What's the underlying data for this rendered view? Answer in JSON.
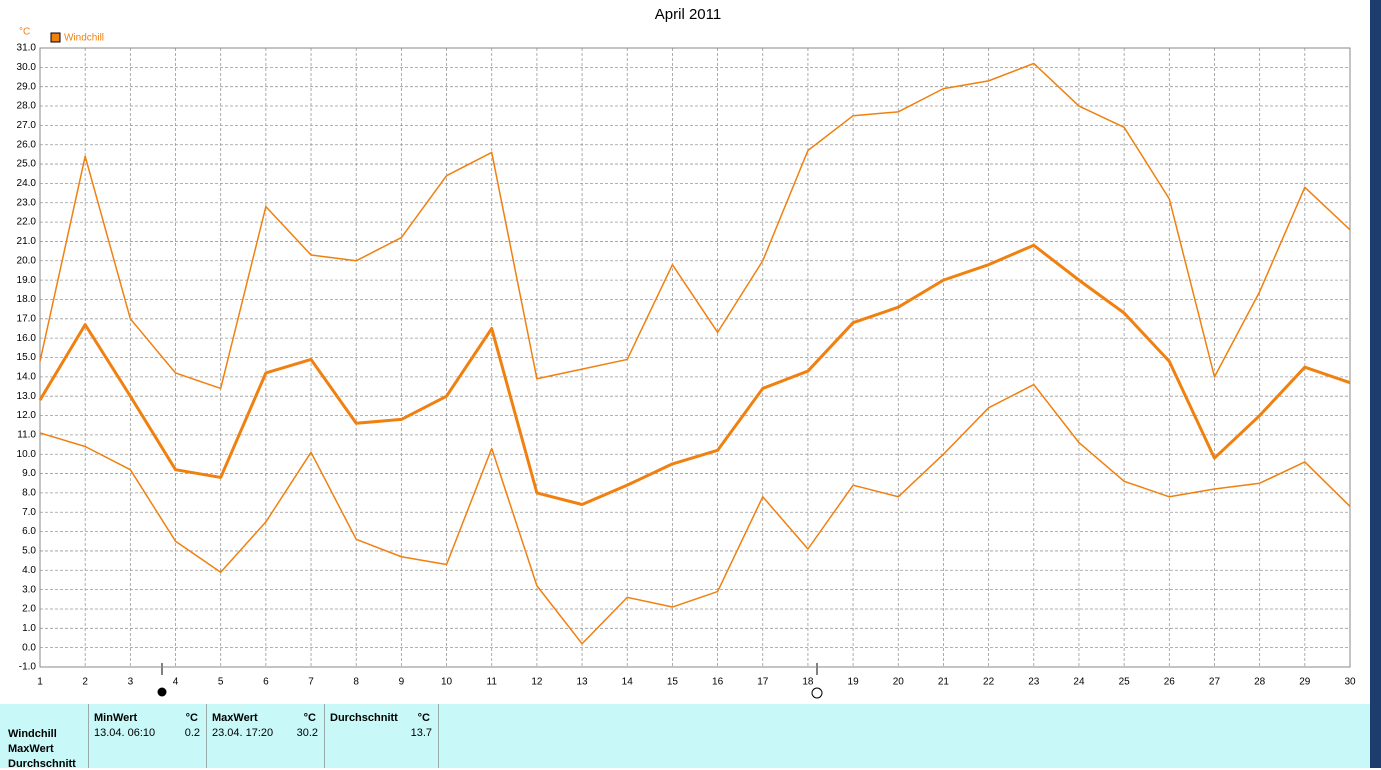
{
  "chart_data": {
    "type": "line",
    "title": "April 2011",
    "y_unit": "°C",
    "legend": "Windchill",
    "color": "#f08010",
    "x": [
      1,
      2,
      3,
      4,
      5,
      6,
      7,
      8,
      9,
      10,
      11,
      12,
      13,
      14,
      15,
      16,
      17,
      18,
      19,
      20,
      21,
      22,
      23,
      24,
      25,
      26,
      27,
      28,
      29,
      30
    ],
    "series": [
      {
        "color": "#f08010",
        "width": 1.5,
        "values": [
          14.8,
          25.4,
          17.0,
          14.2,
          13.4,
          22.8,
          20.3,
          20.0,
          21.2,
          24.4,
          25.6,
          13.9,
          14.4,
          14.9,
          19.8,
          16.3,
          20.0,
          25.7,
          27.5,
          27.7,
          28.9,
          29.3,
          30.2,
          28.0,
          26.9,
          23.2,
          14.0,
          18.4,
          23.8,
          21.6
        ]
      },
      {
        "color": "#f08010",
        "width": 3,
        "values": [
          12.8,
          16.7,
          13.0,
          9.2,
          8.8,
          14.2,
          14.9,
          11.6,
          11.8,
          13.0,
          16.5,
          8.0,
          7.4,
          8.4,
          9.5,
          10.2,
          13.4,
          14.3,
          16.8,
          17.6,
          19.0,
          19.8,
          20.8,
          19.0,
          17.3,
          14.8,
          9.8,
          12.0,
          14.5,
          13.7
        ]
      },
      {
        "color": "#f08010",
        "width": 1.5,
        "values": [
          11.1,
          10.4,
          9.2,
          5.5,
          3.9,
          6.5,
          10.1,
          5.6,
          4.7,
          4.3,
          10.3,
          3.2,
          0.2,
          2.6,
          2.1,
          2.9,
          7.8,
          5.1,
          8.4,
          7.8,
          10.0,
          12.4,
          13.6,
          10.6,
          8.6,
          7.8,
          8.2,
          8.5,
          9.6,
          7.3
        ]
      }
    ],
    "xlim": [
      1,
      30
    ],
    "xticks": [
      1,
      2,
      3,
      4,
      5,
      6,
      7,
      8,
      9,
      10,
      11,
      12,
      13,
      14,
      15,
      16,
      17,
      18,
      19,
      20,
      21,
      22,
      23,
      24,
      25,
      26,
      27,
      28,
      29,
      30
    ],
    "ylim": [
      -1,
      31
    ],
    "yticks": [
      {
        "value": -1,
        "label": "-1.0"
      },
      {
        "value": 0,
        "label": "0.0"
      },
      {
        "value": 1,
        "label": "1.0"
      },
      {
        "value": 2,
        "label": "2.0"
      },
      {
        "value": 3,
        "label": "3.0"
      },
      {
        "value": 4,
        "label": "4.0"
      },
      {
        "value": 5,
        "label": "5.0"
      },
      {
        "value": 6,
        "label": "6.0"
      },
      {
        "value": 7,
        "label": "7.0"
      },
      {
        "value": 8,
        "label": "8.0"
      },
      {
        "value": 9,
        "label": "9.0"
      },
      {
        "value": 10,
        "label": "10.0"
      },
      {
        "value": 11,
        "label": "11.0"
      },
      {
        "value": 12,
        "label": "12.0"
      },
      {
        "value": 13,
        "label": "13.0"
      },
      {
        "value": 14,
        "label": "14.0"
      },
      {
        "value": 15,
        "label": "15.0"
      },
      {
        "value": 16,
        "label": "16.0"
      },
      {
        "value": 17,
        "label": "17.0"
      },
      {
        "value": 18,
        "label": "18.0"
      },
      {
        "value": 19,
        "label": "19.0"
      },
      {
        "value": 20,
        "label": "20.0"
      },
      {
        "value": 21,
        "label": "21.0"
      },
      {
        "value": 22,
        "label": "22.0"
      },
      {
        "value": 23,
        "label": "23.0"
      },
      {
        "value": 24,
        "label": "24.0"
      },
      {
        "value": 25,
        "label": "25.0"
      },
      {
        "value": 26,
        "label": "26.0"
      },
      {
        "value": 27,
        "label": "27.0"
      },
      {
        "value": 28,
        "label": "28.0"
      },
      {
        "value": 29,
        "label": "29.0"
      },
      {
        "value": 30,
        "label": "30.0"
      },
      {
        "value": 31,
        "label": "31.0"
      }
    ],
    "grid": true
  },
  "table": {
    "row_labels": [
      "Windchill",
      "MaxWert",
      "Durchschnitt"
    ],
    "columns": [
      {
        "header": "MinWert",
        "unit": "°C",
        "time": "13.04.  06:10",
        "value": "0.2"
      },
      {
        "header": "MaxWert",
        "unit": "°C",
        "time": "23.04.  17:20",
        "value": "30.2"
      },
      {
        "header": "Durchschnitt",
        "unit": "°C",
        "time": "",
        "value": "13.7"
      }
    ]
  }
}
